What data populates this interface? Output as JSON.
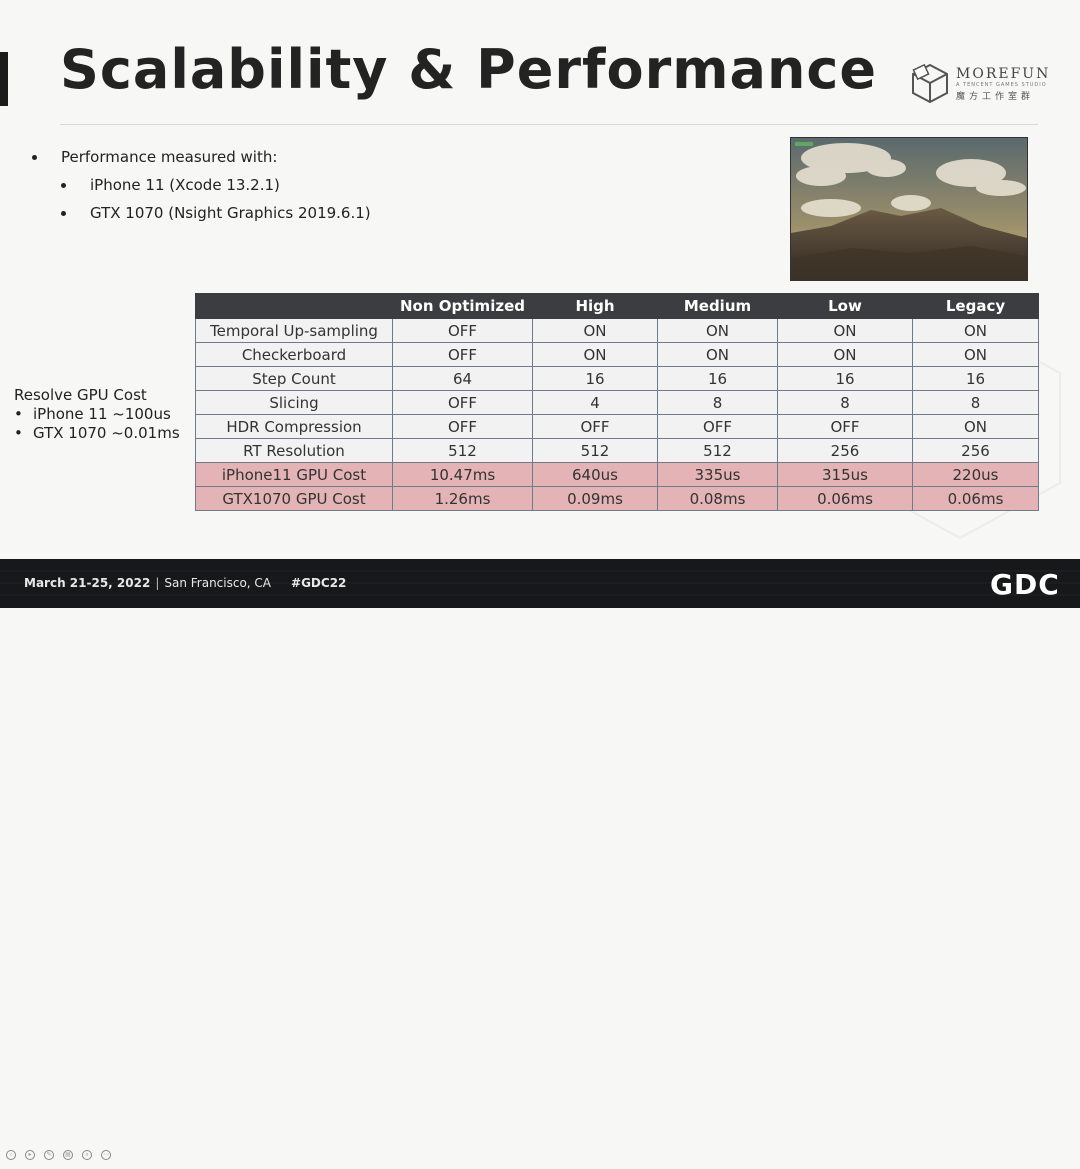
{
  "slide": {
    "title": "Scalability & Performance",
    "logo": {
      "name": "MOREFUN",
      "sub": "A TENCENT GAMES STUDIO",
      "cn": "魔方工作室群"
    },
    "bullets": [
      {
        "text": "Performance measured with:",
        "level": 1
      },
      {
        "text": "iPhone 11 (Xcode 13.2.1)",
        "level": 2
      },
      {
        "text": "GTX 1070 (Nsight Graphics 2019.6.1)",
        "level": 2
      }
    ],
    "image_alt": "terrain-clouds-render",
    "resolve": {
      "heading": "Resolve GPU Cost",
      "items": [
        "iPhone 11 ~100us",
        "GTX 1070 ~0.01ms"
      ]
    }
  },
  "table": {
    "headers": [
      "",
      "Non Optimized",
      "High",
      "Medium",
      "Low",
      "Legacy"
    ],
    "rows": [
      {
        "label": "Temporal Up-sampling",
        "cells": [
          "OFF",
          "ON",
          "ON",
          "ON",
          "ON"
        ],
        "highlight": false
      },
      {
        "label": "Checkerboard",
        "cells": [
          "OFF",
          "ON",
          "ON",
          "ON",
          "ON"
        ],
        "highlight": false
      },
      {
        "label": "Step Count",
        "cells": [
          "64",
          "16",
          "16",
          "16",
          "16"
        ],
        "highlight": false
      },
      {
        "label": "Slicing",
        "cells": [
          "OFF",
          "4",
          "8",
          "8",
          "8"
        ],
        "highlight": false
      },
      {
        "label": "HDR Compression",
        "cells": [
          "OFF",
          "OFF",
          "OFF",
          "OFF",
          "ON"
        ],
        "highlight": false
      },
      {
        "label": "RT Resolution",
        "cells": [
          "512",
          "512",
          "512",
          "256",
          "256"
        ],
        "highlight": false
      },
      {
        "label": "iPhone11 GPU Cost",
        "cells": [
          "10.47ms",
          "640us",
          "335us",
          "315us",
          "220us"
        ],
        "highlight": true
      },
      {
        "label": "GTX1070 GPU Cost",
        "cells": [
          "1.26ms",
          "0.09ms",
          "0.08ms",
          "0.06ms",
          "0.06ms"
        ],
        "highlight": true
      }
    ],
    "colors": {
      "header_bg": "#3b3d40",
      "highlight_bg": "#e3b3b5",
      "row_bg": "#f2f2f2"
    }
  },
  "footer": {
    "date": "March 21-25, 2022",
    "separator": "|",
    "location": "San Francisco, CA",
    "hashtag": "#GDC22",
    "brand": "GDC"
  }
}
